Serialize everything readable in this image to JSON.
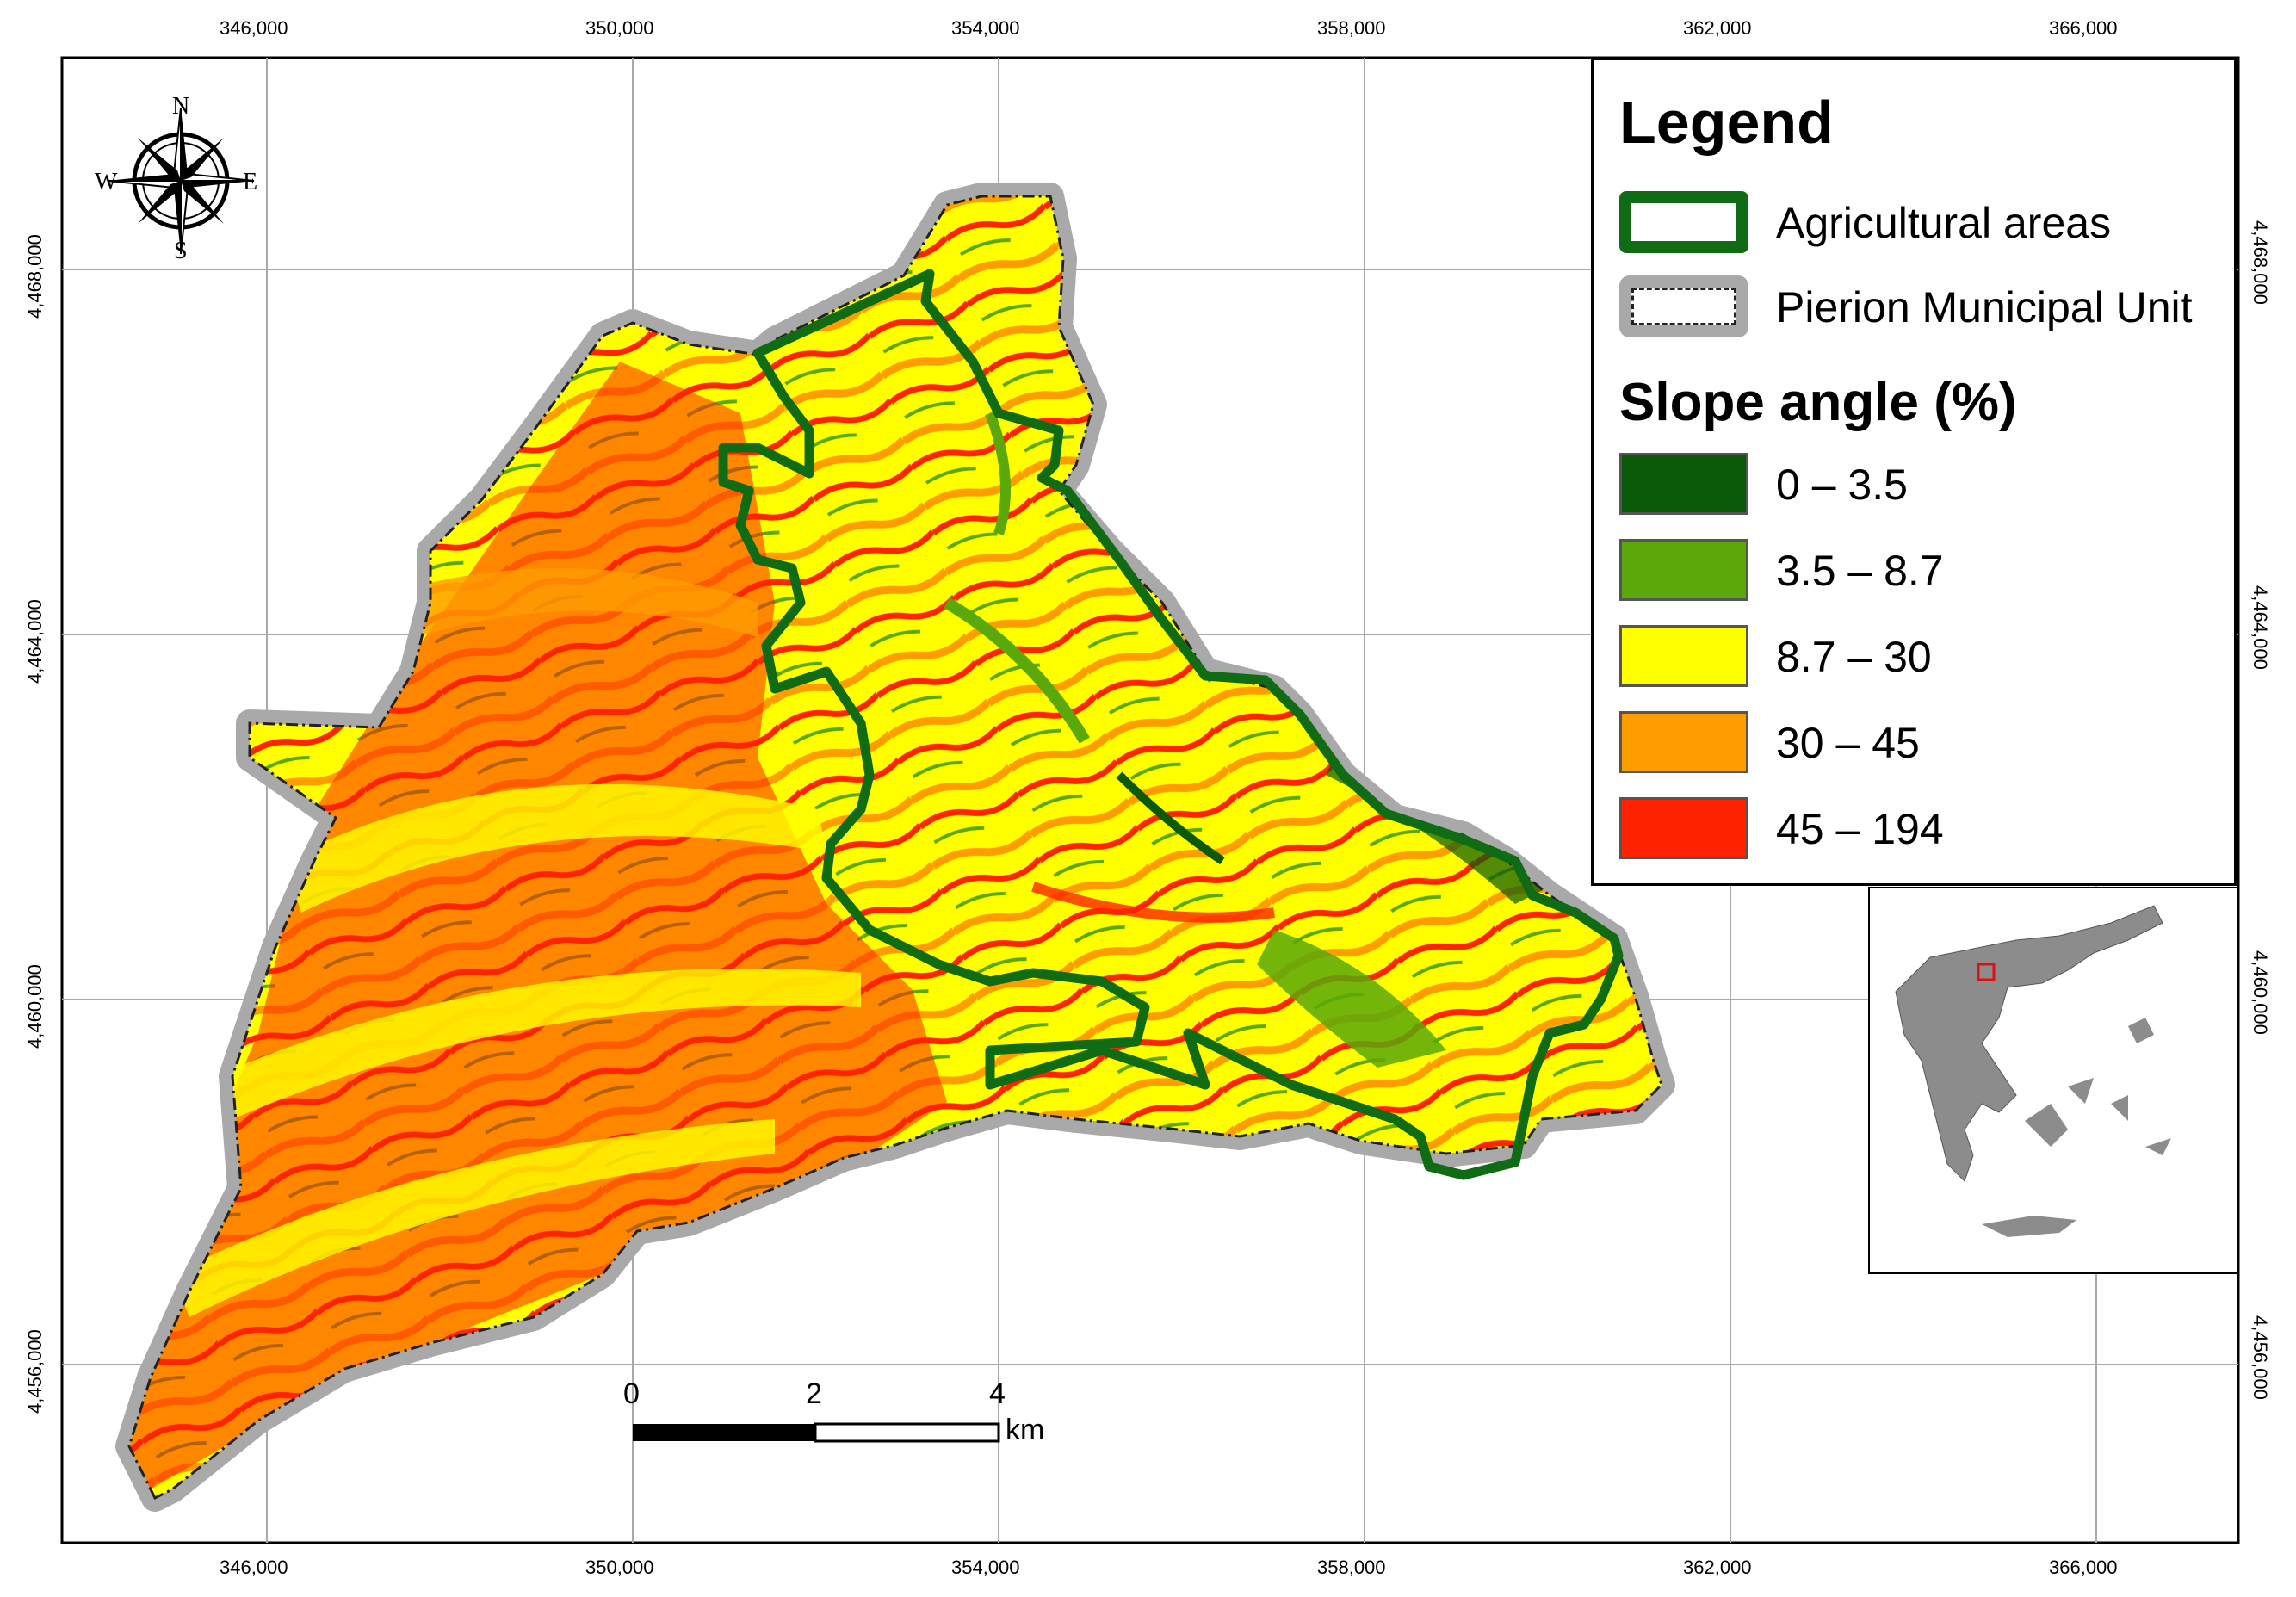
{
  "legend": {
    "title": "Legend",
    "agricultural_label": "Agricultural areas",
    "pierion_label": "Pierion Municipal Unit",
    "slope_title": "Slope angle (%)",
    "classes": [
      {
        "label": "0 – 3.5",
        "color": "#0a5a0a"
      },
      {
        "label": "3.5 – 8.7",
        "color": "#5aa80a"
      },
      {
        "label": "8.7 – 30",
        "color": "#ffff00"
      },
      {
        "label": "30 – 45",
        "color": "#ff9c00"
      },
      {
        "label": "45 – 194",
        "color": "#ff2400"
      }
    ]
  },
  "grid": {
    "x_labels": [
      "346,000",
      "350,000",
      "354,000",
      "358,000",
      "362,000",
      "366,000"
    ],
    "y_labels": [
      "4,468,000",
      "4,464,000",
      "4,460,000",
      "4,456,000"
    ]
  },
  "scale_bar": {
    "labels": [
      "0",
      "2",
      "4"
    ],
    "unit": "km"
  },
  "compass": {
    "n": "N",
    "s": "S",
    "e": "E",
    "w": "W"
  },
  "colors": {
    "agricultural_outline": "#0f6b14",
    "pierion_halo": "#a9a9a9",
    "inset_land": "#8c8c8c",
    "inset_marker": "#e01010"
  }
}
